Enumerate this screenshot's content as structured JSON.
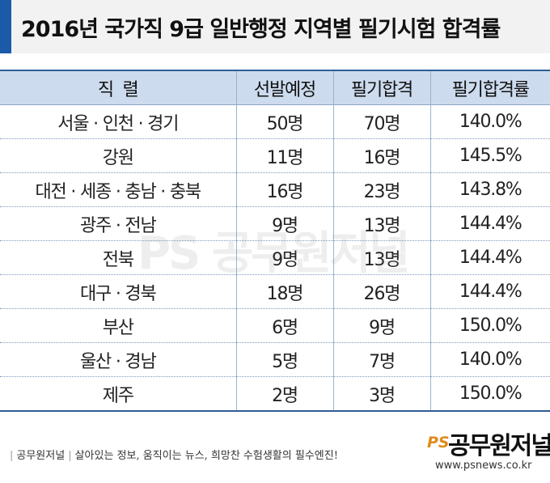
{
  "title": "2016년 국가직 9급 일반행정 지역별 필기시험 합격률",
  "colors": {
    "accent": "#1a5aa8",
    "header_bg": "#ccdbee",
    "rule": "#2f5c96"
  },
  "table": {
    "headers": [
      "직  렬",
      "선발예정",
      "필기합격",
      "필기합격률"
    ],
    "rows": [
      [
        "서울 · 인천 · 경기",
        "50명",
        "70명",
        "140.0%"
      ],
      [
        "강원",
        "11명",
        "16명",
        "145.5%"
      ],
      [
        "대전 · 세종 · 충남 · 충북",
        "16명",
        "23명",
        "143.8%"
      ],
      [
        "광주 · 전남",
        "9명",
        "13명",
        "144.4%"
      ],
      [
        "전북",
        "9명",
        "13명",
        "144.4%"
      ],
      [
        "대구 · 경북",
        "18명",
        "26명",
        "144.4%"
      ],
      [
        "부산",
        "6명",
        "9명",
        "150.0%"
      ],
      [
        "울산 · 경남",
        "5명",
        "7명",
        "140.0%"
      ],
      [
        "제주",
        "2명",
        "3명",
        "150.0%"
      ]
    ]
  },
  "watermark": "PS 공무원저널",
  "footer": {
    "brand": "공무원저널",
    "tagline": "살아있는 정보, 움직이는 뉴스, 희망찬 수험생활의 필수엔진!"
  },
  "logo": {
    "mark": "PS",
    "name": "공무원저널",
    "url": "www.psnews.co.kr"
  }
}
